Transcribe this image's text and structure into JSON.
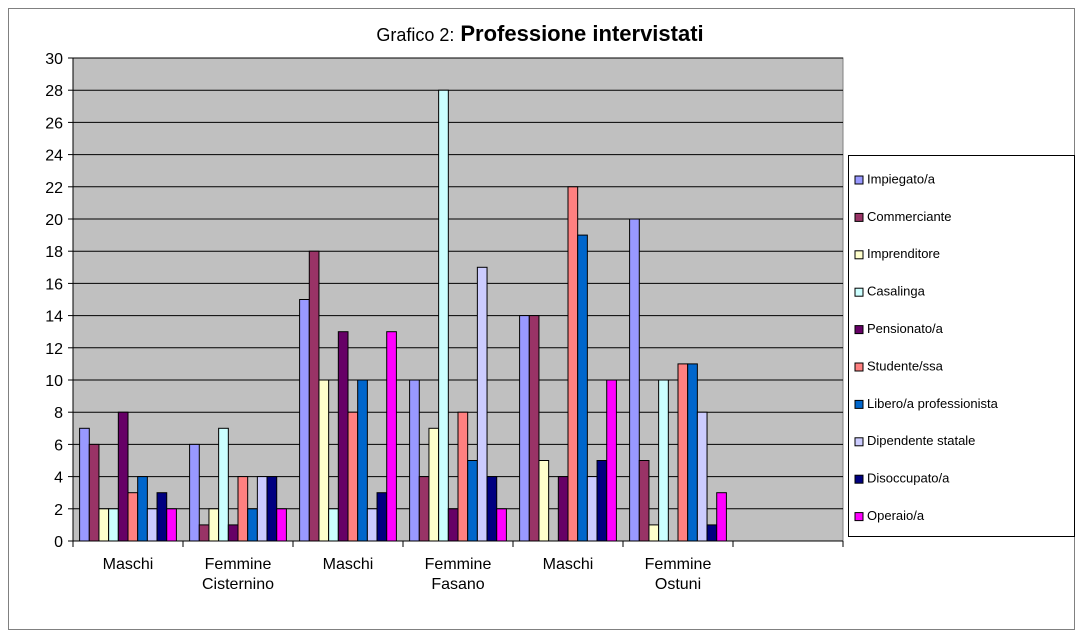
{
  "chart_data": {
    "type": "bar",
    "title_prefix": "Grafico 2:",
    "title": "Professione intervistati",
    "categories": [
      "Maschi",
      "Femmine\nCisternino",
      "Maschi",
      "Femmine\nFasano",
      "Maschi",
      "Femmine\nOstuni",
      null
    ],
    "series": [
      {
        "name": "Impiegato/a",
        "color": "#9999ff",
        "values": [
          7,
          6,
          15,
          10,
          14,
          20,
          null
        ]
      },
      {
        "name": "Commerciante",
        "color": "#993366",
        "values": [
          6,
          1,
          18,
          4,
          14,
          5,
          null
        ]
      },
      {
        "name": "Imprenditore",
        "color": "#ffffcc",
        "values": [
          2,
          2,
          10,
          7,
          5,
          1,
          null
        ]
      },
      {
        "name": "Casalinga",
        "color": "#ccffff",
        "values": [
          2,
          7,
          2,
          28,
          0,
          10,
          null
        ]
      },
      {
        "name": "Pensionato/a",
        "color": "#660066",
        "values": [
          8,
          1,
          13,
          2,
          4,
          0,
          null
        ]
      },
      {
        "name": "Studente/ssa",
        "color": "#ff8080",
        "values": [
          3,
          4,
          8,
          8,
          22,
          11,
          null
        ]
      },
      {
        "name": "Libero/a professionista",
        "color": "#0066cc",
        "values": [
          4,
          2,
          10,
          5,
          19,
          11,
          null
        ]
      },
      {
        "name": "Dipendente statale",
        "color": "#ccccff",
        "values": [
          2,
          4,
          2,
          17,
          4,
          8,
          null
        ]
      },
      {
        "name": "Disoccupato/a",
        "color": "#000080",
        "values": [
          3,
          4,
          3,
          4,
          5,
          1,
          null
        ]
      },
      {
        "name": "Operaio/a",
        "color": "#ff00ff",
        "values": [
          2,
          2,
          13,
          2,
          10,
          3,
          null
        ]
      }
    ],
    "ylim": [
      0,
      30
    ],
    "yticks": [
      0,
      2,
      4,
      6,
      8,
      10,
      12,
      14,
      16,
      18,
      20,
      22,
      24,
      26,
      28,
      30
    ],
    "grid": true,
    "legend": "right"
  }
}
